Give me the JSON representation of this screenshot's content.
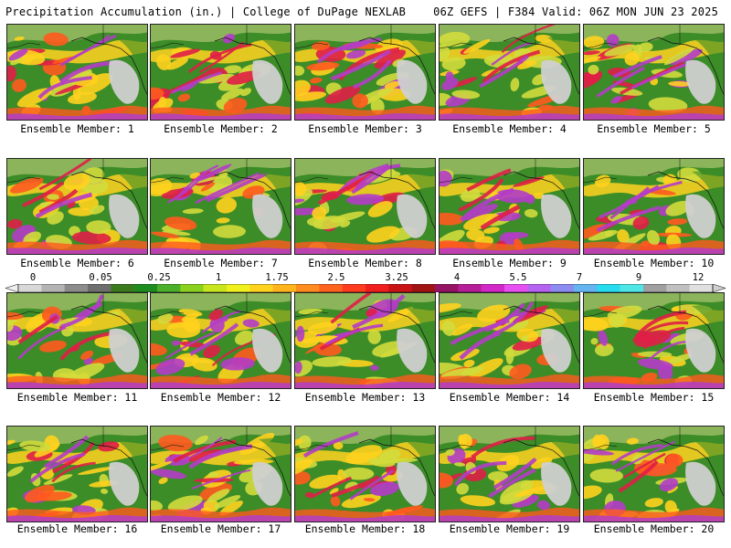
{
  "header": {
    "left_title": "Precipitation Accumulation (in.) | College of DuPage NEXLAB",
    "right_title": "06Z GEFS | F384 Valid: 06Z MON JUN 23 2025"
  },
  "members": [
    "Ensemble Member: 1",
    "Ensemble Member: 2",
    "Ensemble Member: 3",
    "Ensemble Member: 4",
    "Ensemble Member: 5",
    "Ensemble Member: 6",
    "Ensemble Member: 7",
    "Ensemble Member: 8",
    "Ensemble Member: 9",
    "Ensemble Member: 10",
    "Ensemble Member: 11",
    "Ensemble Member: 12",
    "Ensemble Member: 13",
    "Ensemble Member: 14",
    "Ensemble Member: 15",
    "Ensemble Member: 16",
    "Ensemble Member: 17",
    "Ensemble Member: 18",
    "Ensemble Member: 19",
    "Ensemble Member: 20"
  ],
  "colorbar": {
    "labels": [
      "0",
      "0.05",
      "0.25",
      "1",
      "1.75",
      "2.5",
      "3.25",
      "4",
      "5.5",
      "7",
      "9",
      "12"
    ],
    "colors": [
      "#d8d8d8",
      "#b4b4b4",
      "#8c8c8c",
      "#6e6e6e",
      "#3c7a1e",
      "#1f8c1f",
      "#4caf2a",
      "#8ad21e",
      "#c8e61e",
      "#f0f01e",
      "#ffd21e",
      "#ffb41e",
      "#ff8c1e",
      "#ff641e",
      "#ff3c1e",
      "#f01e1e",
      "#c81414",
      "#a01414",
      "#961464",
      "#b41e96",
      "#d228c8",
      "#e650f0",
      "#b464f0",
      "#8c8cf0",
      "#64b4f0",
      "#28dcf0",
      "#50e6e6",
      "#a0a0a0",
      "#c0c0c0",
      "#e0e0e0"
    ]
  },
  "map_colors": {
    "ocean_base": "#3c8c28",
    "land": "#8cb45a",
    "snow": "#d0d0d0",
    "light": "#d2dc3c",
    "moderate": "#ffd21e",
    "heavy": "#ff5a1e",
    "very_heavy": "#e01e46",
    "extreme": "#b43cc8",
    "max": "#64b4f0"
  }
}
